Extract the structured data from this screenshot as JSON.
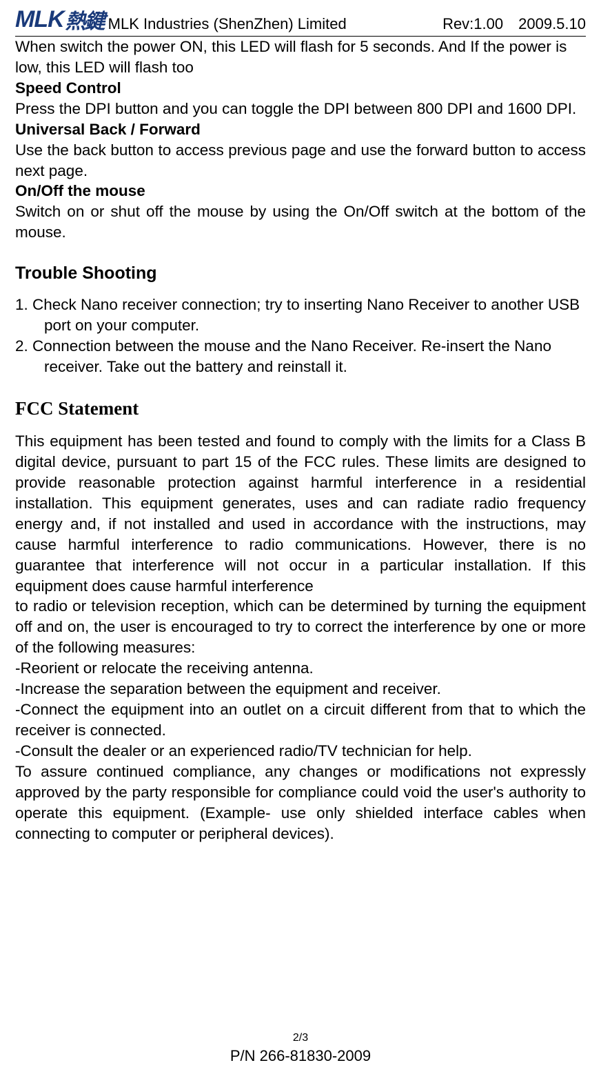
{
  "header": {
    "logo_latin": "MLK",
    "logo_cn": "熱鍵",
    "company": "MLK Industries (ShenZhen) Limited",
    "rev": "Rev:1.00",
    "date": "2009.5.10"
  },
  "intro_led": "When switch the power ON, this LED will flash for 5 seconds. And If the power is low, this LED will flash too",
  "speed": {
    "heading": "Speed Control",
    "text": "Press the DPI button and you can toggle the DPI between 800 DPI and 1600 DPI."
  },
  "backfwd": {
    "heading": "Universal Back / Forward",
    "text": "Use the back button to access previous page and use the forward button to access next page."
  },
  "onoff": {
    "heading": "On/Off the mouse",
    "text": "Switch on or shut off the mouse by using the On/Off switch at the bottom of the mouse."
  },
  "trouble": {
    "heading": "Trouble Shooting",
    "items": [
      "1. Check Nano receiver connection; try to inserting Nano Receiver to another USB port on your computer.",
      "2. Connection between the mouse and the Nano Receiver. Re-insert the Nano receiver. Take out the battery and reinstall it."
    ]
  },
  "fcc": {
    "heading": "FCC Statement",
    "p1": "This equipment has been tested and found to comply with the limits for a Class B digital device, pursuant to part 15 of the FCC rules. These limits are designed to provide reasonable protection against harmful interference in a residential installation. This equipment generates, uses and can radiate radio frequency energy and, if not installed and used in accordance with the instructions, may cause harmful interference to radio communications. However, there is no guarantee that interference will not occur in a particular installation. If this equipment does cause harmful interference",
    "p2": "to radio or television reception, which can be determined by turning the equipment off and on, the user is encouraged to try to correct the interference by one or more of the following measures:",
    "m1": "-Reorient or relocate the receiving antenna.",
    "m2": "-Increase the separation between the equipment and receiver.",
    "m3": "-Connect the equipment into an outlet on a circuit different from that to which the receiver is connected.",
    "m4": "-Consult the dealer or an experienced radio/TV technician for help.",
    "p3": "To assure continued compliance, any changes or modifications not expressly approved by the party responsible for compliance could void the user's authority to operate this equipment. (Example- use only shielded interface cables when connecting to computer or peripheral devices)."
  },
  "footer": {
    "page": "2/3",
    "pn": "P/N 266-81830-2009"
  }
}
